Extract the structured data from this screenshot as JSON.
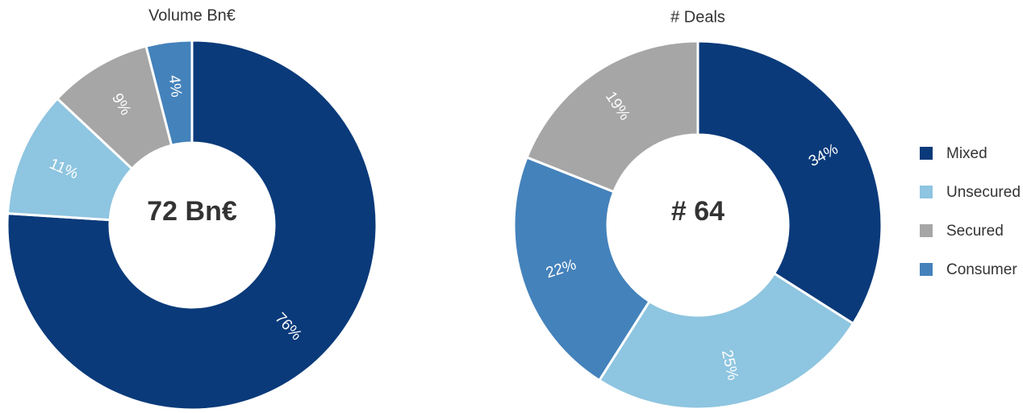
{
  "chart_data": [
    {
      "type": "donut",
      "title": "Volume Bn€",
      "center_label": "72 Bn€",
      "categories": [
        "Mixed",
        "Unsecured",
        "Secured",
        "Consumer"
      ],
      "values": [
        76,
        11,
        9,
        4
      ],
      "value_labels": [
        "76%",
        "11%",
        "9%",
        "4%"
      ],
      "colors": [
        "#0a3a7a",
        "#8ec5e0",
        "#a6a6a6",
        "#4482bb"
      ]
    },
    {
      "type": "donut",
      "title": "# Deals",
      "center_label": "# 64",
      "categories": [
        "Mixed",
        "Unsecured",
        "Consumer",
        "Secured"
      ],
      "values": [
        34,
        25,
        22,
        19
      ],
      "value_labels": [
        "34%",
        "25%",
        "22%",
        "19%"
      ],
      "colors": [
        "#0a3a7a",
        "#8ec5e0",
        "#4482bb",
        "#a6a6a6"
      ]
    }
  ]
}
